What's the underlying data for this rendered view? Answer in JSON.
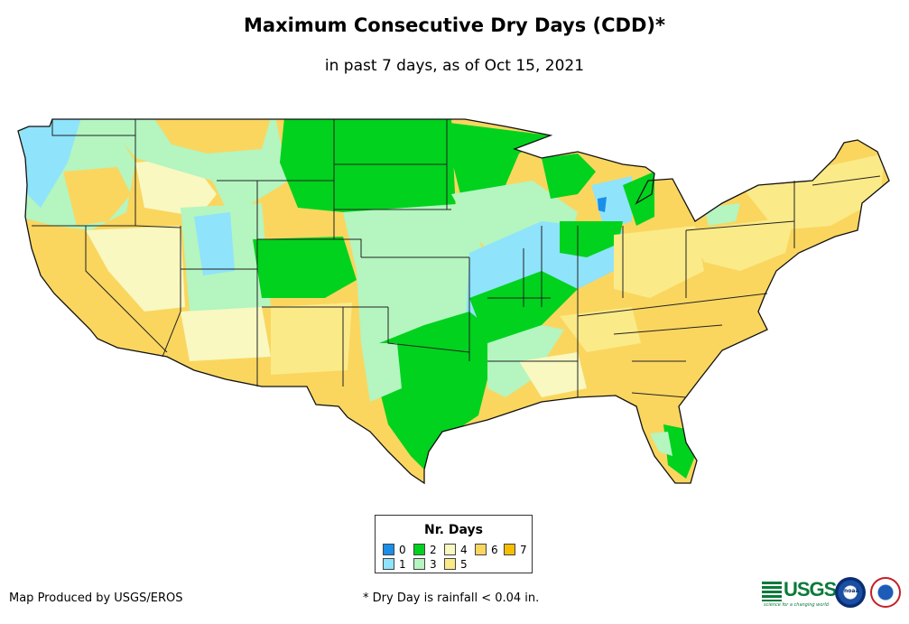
{
  "header": {
    "title": "Maximum Consecutive Dry Days (CDD)*",
    "subtitle": "in past 7 days, as of Oct 15, 2021"
  },
  "legend": {
    "title": "Nr. Days",
    "items": [
      {
        "label": "0",
        "color": "#1a8ee8"
      },
      {
        "label": "1",
        "color": "#8fe3fb"
      },
      {
        "label": "2",
        "color": "#00d21e"
      },
      {
        "label": "3",
        "color": "#b4f5c0"
      },
      {
        "label": "4",
        "color": "#f8f8c0"
      },
      {
        "label": "5",
        "color": "#fbea88"
      },
      {
        "label": "6",
        "color": "#fad65f"
      },
      {
        "label": "7",
        "color": "#f5bf00"
      }
    ]
  },
  "map": {
    "name": "Contiguous United States",
    "classes": {
      "d0": "#1a8ee8",
      "d1": "#8fe3fb",
      "d2": "#00d21e",
      "d3": "#b4f5c0",
      "d4": "#f8f8c0",
      "d5": "#fbea88",
      "d6": "#fad65f",
      "d7": "#f5bf00"
    }
  },
  "footer": {
    "credit": "Map Produced by USGS/EROS",
    "footnote": "* Dry Day is rainfall < 0.04 in.",
    "logos": {
      "usgs": "USGS",
      "usgs_tagline": "science for a changing world",
      "noaa": "noaa"
    }
  }
}
